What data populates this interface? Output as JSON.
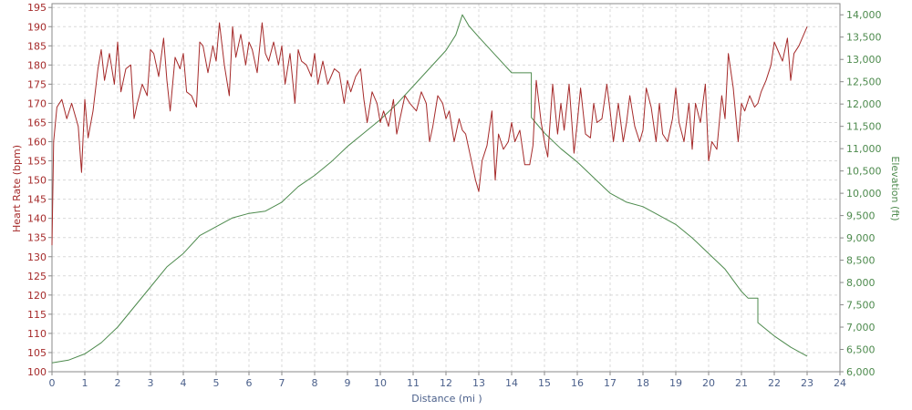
{
  "chart_data": {
    "type": "line",
    "xlabel": "Distance (mi )",
    "ylabel_left": "Heart Rate (bpm)",
    "ylabel_right": "Elevation (ft)",
    "xlim": [
      0,
      24
    ],
    "ylim_left": [
      100,
      196
    ],
    "ylim_right": [
      6000,
      14250
    ],
    "grid": true,
    "x_ticks": [
      "0",
      "1",
      "2",
      "3",
      "4",
      "5",
      "6",
      "7",
      "8",
      "9",
      "10",
      "11",
      "12",
      "13",
      "14",
      "15",
      "16",
      "17",
      "18",
      "19",
      "20",
      "21",
      "22",
      "23",
      "24"
    ],
    "y_left_ticks": [
      "100",
      "105",
      "110",
      "115",
      "120",
      "125",
      "130",
      "135",
      "140",
      "145",
      "150",
      "155",
      "160",
      "165",
      "170",
      "175",
      "180",
      "185",
      "190",
      "195"
    ],
    "y_right_ticks": [
      "6,000",
      "6,500",
      "7,000",
      "7,500",
      "8,000",
      "8,500",
      "9,000",
      "9,500",
      "10,000",
      "10,500",
      "11,000",
      "11,500",
      "12,000",
      "12,500",
      "13,000",
      "13,500",
      "14,000"
    ],
    "colors": {
      "heart_rate": "#a52a2a",
      "elevation": "#4d8a4d",
      "axis": "#8a8a8a",
      "grid": "#d9d9d9"
    },
    "series": [
      {
        "axis": "left",
        "x": [
          0,
          0.05,
          0.15,
          0.3,
          0.45,
          0.6,
          0.8,
          0.9,
          1.0,
          1.1,
          1.25,
          1.4,
          1.5,
          1.6,
          1.75,
          1.9,
          2.0,
          2.1,
          2.25,
          2.4,
          2.5,
          2.6,
          2.75,
          2.9,
          3.0,
          3.1,
          3.25,
          3.4,
          3.5,
          3.6,
          3.75,
          3.9,
          4.0,
          4.1,
          4.25,
          4.4,
          4.5,
          4.6,
          4.75,
          4.9,
          5.0,
          5.1,
          5.25,
          5.4,
          5.5,
          5.6,
          5.75,
          5.9,
          6.0,
          6.1,
          6.25,
          6.4,
          6.5,
          6.6,
          6.75,
          6.9,
          7.0,
          7.1,
          7.25,
          7.4,
          7.5,
          7.6,
          7.75,
          7.9,
          8.0,
          8.1,
          8.25,
          8.4,
          8.5,
          8.6,
          8.75,
          8.9,
          9.0,
          9.1,
          9.25,
          9.4,
          9.5,
          9.6,
          9.75,
          9.9,
          10.0,
          10.1,
          10.25,
          10.4,
          10.5,
          10.6,
          10.75,
          10.9,
          11.0,
          11.1,
          11.25,
          11.4,
          11.5,
          11.6,
          11.75,
          11.9,
          12.0,
          12.1,
          12.25,
          12.4,
          12.5,
          12.6,
          12.75,
          12.9,
          13.0,
          13.1,
          13.25,
          13.4,
          13.5,
          13.6,
          13.75,
          13.9,
          14.0,
          14.1,
          14.25,
          14.4,
          14.55,
          14.65,
          14.75,
          14.9,
          15.0,
          15.1,
          15.25,
          15.4,
          15.5,
          15.6,
          15.75,
          15.9,
          16.0,
          16.1,
          16.25,
          16.4,
          16.5,
          16.6,
          16.75,
          16.9,
          17.0,
          17.1,
          17.25,
          17.4,
          17.5,
          17.6,
          17.75,
          17.9,
          18.0,
          18.1,
          18.25,
          18.4,
          18.5,
          18.6,
          18.75,
          18.9,
          19.0,
          19.1,
          19.25,
          19.4,
          19.5,
          19.6,
          19.75,
          19.9,
          20.0,
          20.1,
          20.25,
          20.4,
          20.5,
          20.6,
          20.75,
          20.9,
          21.0,
          21.1,
          21.25,
          21.4,
          21.5,
          21.6,
          21.75,
          21.9,
          22.0,
          22.1,
          22.25,
          22.4,
          22.5,
          22.6,
          22.75,
          22.9,
          23.0
        ],
        "values": [
          133,
          160,
          169,
          171,
          166,
          170,
          164,
          152,
          171,
          161,
          168,
          179,
          184,
          176,
          183,
          175,
          186,
          173,
          179,
          180,
          166,
          170,
          175,
          172,
          184,
          183,
          177,
          187,
          176,
          168,
          182,
          179,
          183,
          173,
          172,
          169,
          186,
          185,
          178,
          185,
          181,
          191,
          180,
          172,
          190,
          182,
          188,
          180,
          186,
          184,
          178,
          191,
          183,
          181,
          186,
          180,
          185,
          175,
          183,
          170,
          184,
          181,
          180,
          177,
          183,
          175,
          181,
          175,
          177,
          179,
          178,
          170,
          176,
          173,
          177,
          179,
          171,
          165,
          173,
          170,
          165,
          168,
          164,
          171,
          162,
          166,
          172,
          170,
          169,
          168,
          173,
          170,
          160,
          164,
          172,
          170,
          166,
          168,
          160,
          166,
          163,
          162,
          156,
          150,
          147,
          155,
          159,
          168,
          150,
          162,
          158,
          160,
          165,
          160,
          163,
          154,
          154,
          159,
          176,
          165,
          160,
          156,
          175,
          162,
          170,
          163,
          175,
          157,
          165,
          174,
          162,
          161,
          170,
          165,
          166,
          175,
          168,
          160,
          170,
          160,
          165,
          172,
          164,
          160,
          163,
          174,
          169,
          160,
          170,
          162,
          160,
          166,
          174,
          165,
          160,
          170,
          158,
          170,
          165,
          175,
          155,
          160,
          158,
          172,
          166,
          183,
          174,
          160,
          170,
          168,
          172,
          169,
          170,
          173,
          176,
          180,
          186,
          184,
          181,
          187,
          176,
          183,
          185,
          188,
          190
        ]
      },
      {
        "axis": "right",
        "x": [
          0,
          0.5,
          1.0,
          1.5,
          2.0,
          2.5,
          3.0,
          3.5,
          4.0,
          4.5,
          5.0,
          5.5,
          6.0,
          6.5,
          7.0,
          7.5,
          8.0,
          8.5,
          9.0,
          9.5,
          10.0,
          10.5,
          11.0,
          11.5,
          12.0,
          12.3,
          12.5,
          12.7,
          13.0,
          13.5,
          14.0,
          14.6,
          14.6,
          15.0,
          15.5,
          16.0,
          16.5,
          17.0,
          17.5,
          18.0,
          18.5,
          19.0,
          19.5,
          20.0,
          20.5,
          21.0,
          21.2,
          21.5,
          21.5,
          22.0,
          22.5,
          23.0
        ],
        "values": [
          6200,
          6260,
          6400,
          6650,
          7000,
          7450,
          7900,
          8350,
          8650,
          9050,
          9250,
          9450,
          9550,
          9600,
          9800,
          10150,
          10400,
          10700,
          11050,
          11350,
          11650,
          12000,
          12400,
          12800,
          13200,
          13550,
          14000,
          13750,
          13500,
          13100,
          12700,
          12700,
          11700,
          11350,
          11000,
          10700,
          10350,
          10000,
          9800,
          9700,
          9500,
          9300,
          9000,
          8650,
          8300,
          7800,
          7650,
          7650,
          7100,
          6800,
          6550,
          6350
        ]
      }
    ]
  }
}
